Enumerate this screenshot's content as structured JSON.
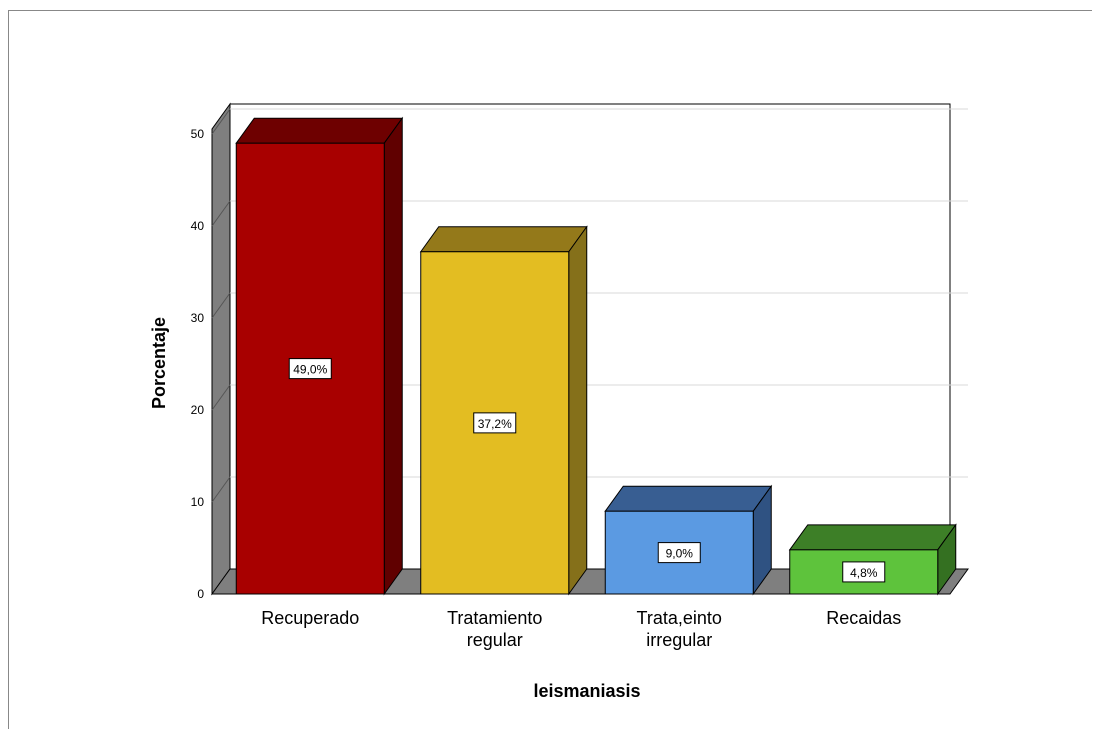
{
  "chart_data": {
    "type": "bar",
    "style": "3d",
    "categories": [
      "Recuperado",
      "Tratamiento regular",
      "Trata,einto irregular",
      "Recaidas"
    ],
    "category_lines": [
      [
        "Recuperado"
      ],
      [
        "Tratamiento",
        "regular"
      ],
      [
        "Trata,einto",
        "irregular"
      ],
      [
        "Recaidas"
      ]
    ],
    "values": [
      49.0,
      37.2,
      9.0,
      4.8
    ],
    "data_labels": [
      "49,0%",
      "37,2%",
      "9,0%",
      "4,8%"
    ],
    "xlabel": "leismaniasis",
    "ylabel": "Porcentaje",
    "ylim": [
      0,
      50
    ],
    "yticks": [
      "0",
      "10",
      "20",
      "30",
      "40",
      "50"
    ],
    "grid": true,
    "colors": [
      {
        "front": "#a80000",
        "top": "#6e0000",
        "side": "#600000"
      },
      {
        "front": "#e3bd22",
        "top": "#94791a",
        "side": "#85701a"
      },
      {
        "front": "#5b9ae2",
        "top": "#385e92",
        "side": "#2f5282"
      },
      {
        "front": "#5ec33c",
        "top": "#3d7f27",
        "side": "#347021"
      }
    ],
    "wall_color": "#7f7f7f",
    "gridline_color": "#d9d9d9"
  }
}
